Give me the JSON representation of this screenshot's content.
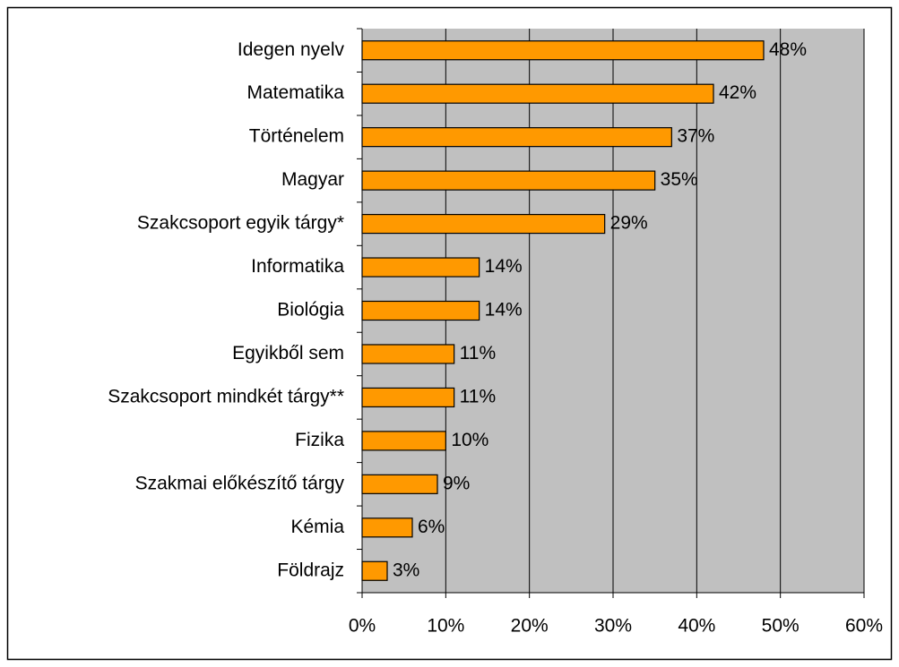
{
  "chart_data": {
    "type": "bar",
    "orientation": "horizontal",
    "categories": [
      "Idegen nyelv",
      "Matematika",
      "Történelem",
      "Magyar",
      "Szakcsoport egyik tárgy*",
      "Informatika",
      "Biológia",
      "Egyikből sem",
      "Szakcsoport mindkét tárgy**",
      "Fizika",
      "Szakmai előkészítő tárgy",
      "Kémia",
      "Földrajz"
    ],
    "values": [
      48,
      42,
      37,
      35,
      29,
      14,
      14,
      11,
      11,
      10,
      9,
      6,
      3
    ],
    "value_labels": [
      "48%",
      "42%",
      "37%",
      "35%",
      "29%",
      "14%",
      "14%",
      "11%",
      "11%",
      "10%",
      "9%",
      "6%",
      "3%"
    ],
    "color": "#ff9900",
    "xlim": [
      0,
      60
    ],
    "xticks": [
      {
        "value": 0,
        "label": "0%"
      },
      {
        "value": 10,
        "label": "10%"
      },
      {
        "value": 20,
        "label": "20%"
      },
      {
        "value": 30,
        "label": "30%"
      },
      {
        "value": 40,
        "label": "40%"
      },
      {
        "value": 50,
        "label": "50%"
      },
      {
        "value": 60,
        "label": "60%"
      }
    ],
    "grid": true
  }
}
